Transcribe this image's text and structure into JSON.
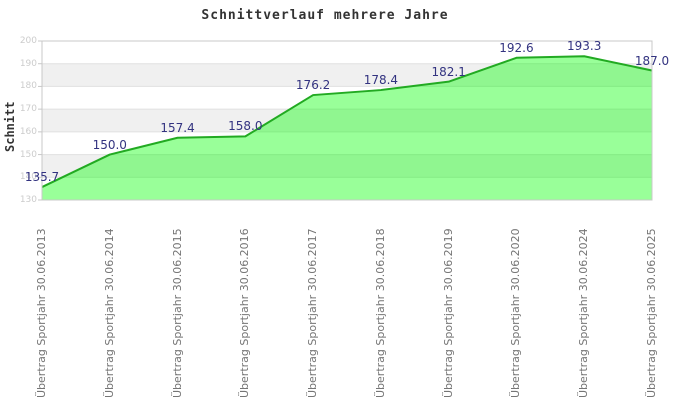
{
  "chart_data": {
    "type": "area",
    "title": "Schnittverlauf mehrere Jahre",
    "xlabel": "",
    "ylabel": "Schnitt",
    "categories": [
      "Übertrag Sportjahr 30.06.2013",
      "Übertrag Sportjahr 30.06.2014",
      "Übertrag Sportjahr 30.06.2015",
      "Übertrag Sportjahr 30.06.2016",
      "Übertrag Sportjahr 30.06.2017",
      "Übertrag Sportjahr 30.06.2018",
      "Übertrag Sportjahr 30.06.2019",
      "Übertrag Sportjahr 30.06.2020",
      "Übertrag Sportjahr 30.06.2024",
      "Übertrag Sportjahr 30.06.2025"
    ],
    "values": [
      135.7,
      150.0,
      157.4,
      158.0,
      176.2,
      178.4,
      182.1,
      192.6,
      193.3,
      187.0
    ],
    "ylim": [
      130,
      200
    ],
    "ytick_step": 10,
    "yticks": [
      130,
      140,
      150,
      160,
      170,
      180,
      190,
      200
    ],
    "grid": "horizontal alternating bands",
    "legend": "none",
    "colors": {
      "fill": "#00ff00",
      "fill_opacity": 0.4,
      "line": "#22aa22",
      "band": "#f0f0f0",
      "band_alt": "#ffffff",
      "grid_line": "#e0e0e0",
      "border": "#c8c8c8",
      "value_label": "#333380",
      "y_tick_label": "#cccccc",
      "x_label": "#757575",
      "title_color": "#333333"
    }
  }
}
